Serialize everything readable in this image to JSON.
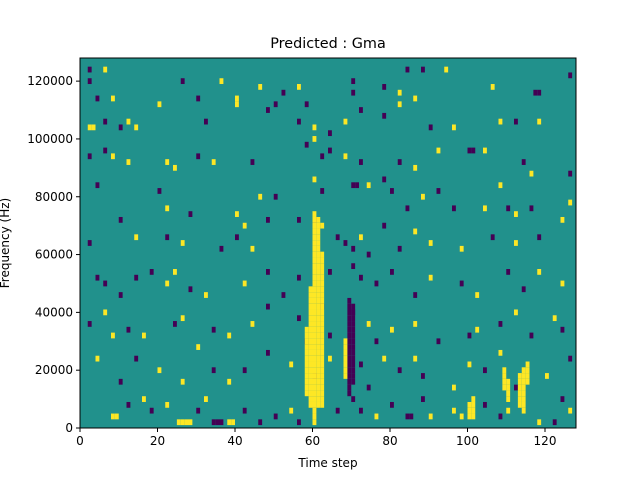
{
  "chart_data": {
    "type": "heatmap",
    "title": "Predicted : Gma",
    "xlabel": "Time step",
    "ylabel": "Frequency (Hz)",
    "xlim": [
      0,
      128
    ],
    "ylim": [
      0,
      128000
    ],
    "x_ticks": [
      0,
      20,
      40,
      60,
      80,
      100,
      120
    ],
    "y_ticks": [
      0,
      20000,
      40000,
      60000,
      80000,
      100000,
      120000
    ],
    "y_tick_labels": [
      "0",
      "20000",
      "40000",
      "60000",
      "80000",
      "100000",
      "120000"
    ],
    "colormap": "viridis",
    "values_range": [
      -1,
      1
    ],
    "colors": {
      "low": "#440154",
      "mid": "#21918c",
      "high": "#fde725"
    },
    "background_value": 0,
    "cells": [
      {
        "x": 2,
        "y": 124000,
        "v": -1
      },
      {
        "x": 2,
        "y": 120000,
        "v": -1
      },
      {
        "x": 6,
        "y": 124000,
        "v": 1
      },
      {
        "x": 26,
        "y": 120000,
        "v": -1
      },
      {
        "x": 36,
        "y": 120000,
        "v": 1
      },
      {
        "x": 46,
        "y": 118000,
        "v": 1
      },
      {
        "x": 52,
        "y": 116000,
        "v": -1
      },
      {
        "x": 56,
        "y": 118000,
        "v": 1
      },
      {
        "x": 84,
        "y": 124000,
        "v": -1
      },
      {
        "x": 88,
        "y": 124000,
        "v": -1
      },
      {
        "x": 94,
        "y": 124000,
        "v": 1
      },
      {
        "x": 117,
        "y": 116000,
        "v": -1
      },
      {
        "x": 118,
        "y": 116000,
        "v": -1
      },
      {
        "x": 126,
        "y": 122000,
        "v": -1
      },
      {
        "x": 4,
        "y": 114000,
        "v": -1
      },
      {
        "x": 8,
        "y": 114000,
        "v": 1
      },
      {
        "x": 20,
        "y": 112000,
        "v": 1
      },
      {
        "x": 30,
        "y": 114000,
        "v": -1
      },
      {
        "x": 40,
        "y": 114000,
        "v": 1
      },
      {
        "x": 40,
        "y": 112000,
        "v": 1
      },
      {
        "x": 50,
        "y": 112000,
        "v": -1
      },
      {
        "x": 58,
        "y": 112000,
        "v": -1
      },
      {
        "x": 70,
        "y": 120000,
        "v": -1
      },
      {
        "x": 70,
        "y": 116000,
        "v": -1
      },
      {
        "x": 78,
        "y": 118000,
        "v": -1
      },
      {
        "x": 82,
        "y": 116000,
        "v": 1
      },
      {
        "x": 82,
        "y": 112000,
        "v": 1
      },
      {
        "x": 86,
        "y": 114000,
        "v": 1
      },
      {
        "x": 106,
        "y": 118000,
        "v": 1
      },
      {
        "x": 2,
        "y": 104000,
        "v": 1
      },
      {
        "x": 3,
        "y": 104000,
        "v": 1
      },
      {
        "x": 6,
        "y": 106000,
        "v": -1
      },
      {
        "x": 10,
        "y": 104000,
        "v": -1
      },
      {
        "x": 12,
        "y": 106000,
        "v": 1
      },
      {
        "x": 14,
        "y": 104000,
        "v": 1
      },
      {
        "x": 32,
        "y": 106000,
        "v": -1
      },
      {
        "x": 48,
        "y": 110000,
        "v": -1
      },
      {
        "x": 56,
        "y": 106000,
        "v": -1
      },
      {
        "x": 60,
        "y": 104000,
        "v": 1
      },
      {
        "x": 60,
        "y": 100000,
        "v": 1
      },
      {
        "x": 64,
        "y": 102000,
        "v": -1
      },
      {
        "x": 68,
        "y": 106000,
        "v": 1
      },
      {
        "x": 72,
        "y": 110000,
        "v": -1
      },
      {
        "x": 78,
        "y": 108000,
        "v": -1
      },
      {
        "x": 90,
        "y": 104000,
        "v": -1
      },
      {
        "x": 96,
        "y": 104000,
        "v": 1
      },
      {
        "x": 108,
        "y": 106000,
        "v": 1
      },
      {
        "x": 112,
        "y": 106000,
        "v": -1
      },
      {
        "x": 118,
        "y": 106000,
        "v": 1
      },
      {
        "x": 2,
        "y": 94000,
        "v": -1
      },
      {
        "x": 6,
        "y": 96000,
        "v": -1
      },
      {
        "x": 8,
        "y": 94000,
        "v": 1
      },
      {
        "x": 12,
        "y": 92000,
        "v": 1
      },
      {
        "x": 22,
        "y": 92000,
        "v": 1
      },
      {
        "x": 24,
        "y": 90000,
        "v": 1
      },
      {
        "x": 30,
        "y": 94000,
        "v": -1
      },
      {
        "x": 34,
        "y": 92000,
        "v": 1
      },
      {
        "x": 44,
        "y": 92000,
        "v": -1
      },
      {
        "x": 58,
        "y": 98000,
        "v": -1
      },
      {
        "x": 62,
        "y": 94000,
        "v": -1
      },
      {
        "x": 64,
        "y": 96000,
        "v": -1
      },
      {
        "x": 68,
        "y": 94000,
        "v": 1
      },
      {
        "x": 72,
        "y": 92000,
        "v": -1
      },
      {
        "x": 82,
        "y": 92000,
        "v": -1
      },
      {
        "x": 86,
        "y": 90000,
        "v": 1
      },
      {
        "x": 92,
        "y": 96000,
        "v": 1
      },
      {
        "x": 100,
        "y": 96000,
        "v": -1
      },
      {
        "x": 101,
        "y": 96000,
        "v": -1
      },
      {
        "x": 104,
        "y": 96000,
        "v": 1
      },
      {
        "x": 114,
        "y": 92000,
        "v": -1
      },
      {
        "x": 116,
        "y": 88000,
        "v": 1
      },
      {
        "x": 126,
        "y": 88000,
        "v": -1
      },
      {
        "x": 4,
        "y": 84000,
        "v": -1
      },
      {
        "x": 20,
        "y": 82000,
        "v": -1
      },
      {
        "x": 22,
        "y": 76000,
        "v": 1
      },
      {
        "x": 28,
        "y": 74000,
        "v": -1
      },
      {
        "x": 40,
        "y": 74000,
        "v": 1
      },
      {
        "x": 46,
        "y": 80000,
        "v": 1
      },
      {
        "x": 50,
        "y": 80000,
        "v": -1
      },
      {
        "x": 60,
        "y": 86000,
        "v": 1
      },
      {
        "x": 62,
        "y": 82000,
        "v": -1
      },
      {
        "x": 70,
        "y": 84000,
        "v": -1
      },
      {
        "x": 71,
        "y": 84000,
        "v": -1
      },
      {
        "x": 74,
        "y": 84000,
        "v": 1
      },
      {
        "x": 78,
        "y": 86000,
        "v": -1
      },
      {
        "x": 80,
        "y": 82000,
        "v": -1
      },
      {
        "x": 84,
        "y": 76000,
        "v": -1
      },
      {
        "x": 88,
        "y": 80000,
        "v": 1
      },
      {
        "x": 92,
        "y": 82000,
        "v": -1
      },
      {
        "x": 96,
        "y": 76000,
        "v": -1
      },
      {
        "x": 104,
        "y": 76000,
        "v": 1
      },
      {
        "x": 108,
        "y": 84000,
        "v": 1
      },
      {
        "x": 110,
        "y": 76000,
        "v": -1
      },
      {
        "x": 112,
        "y": 74000,
        "v": 1
      },
      {
        "x": 116,
        "y": 76000,
        "v": -1
      },
      {
        "x": 124,
        "y": 72000,
        "v": 1
      },
      {
        "x": 126,
        "y": 78000,
        "v": 1
      },
      {
        "x": 2,
        "y": 64000,
        "v": -1
      },
      {
        "x": 10,
        "y": 72000,
        "v": -1
      },
      {
        "x": 14,
        "y": 66000,
        "v": 1
      },
      {
        "x": 22,
        "y": 66000,
        "v": -1
      },
      {
        "x": 26,
        "y": 64000,
        "v": 1
      },
      {
        "x": 36,
        "y": 62000,
        "v": -1
      },
      {
        "x": 40,
        "y": 66000,
        "v": -1
      },
      {
        "x": 42,
        "y": 70000,
        "v": 1
      },
      {
        "x": 44,
        "y": 62000,
        "v": 1
      },
      {
        "x": 48,
        "y": 72000,
        "v": -1
      },
      {
        "x": 56,
        "y": 72000,
        "v": -1
      },
      {
        "x": 60,
        "y": 72000,
        "v": -1
      },
      {
        "x": 62,
        "y": 70000,
        "v": 1
      },
      {
        "x": 66,
        "y": 66000,
        "v": -1
      },
      {
        "x": 68,
        "y": 64000,
        "v": -1
      },
      {
        "x": 70,
        "y": 62000,
        "v": -1
      },
      {
        "x": 72,
        "y": 66000,
        "v": 1
      },
      {
        "x": 74,
        "y": 60000,
        "v": -1
      },
      {
        "x": 78,
        "y": 70000,
        "v": -1
      },
      {
        "x": 82,
        "y": 62000,
        "v": -1
      },
      {
        "x": 86,
        "y": 68000,
        "v": 1
      },
      {
        "x": 90,
        "y": 64000,
        "v": 1
      },
      {
        "x": 98,
        "y": 62000,
        "v": 1
      },
      {
        "x": 106,
        "y": 66000,
        "v": -1
      },
      {
        "x": 112,
        "y": 64000,
        "v": 1
      },
      {
        "x": 118,
        "y": 66000,
        "v": -1
      },
      {
        "x": 4,
        "y": 52000,
        "v": -1
      },
      {
        "x": 6,
        "y": 50000,
        "v": -1
      },
      {
        "x": 10,
        "y": 46000,
        "v": -1
      },
      {
        "x": 14,
        "y": 52000,
        "v": -1
      },
      {
        "x": 18,
        "y": 54000,
        "v": -1
      },
      {
        "x": 22,
        "y": 50000,
        "v": 1
      },
      {
        "x": 24,
        "y": 54000,
        "v": 1
      },
      {
        "x": 28,
        "y": 48000,
        "v": -1
      },
      {
        "x": 32,
        "y": 46000,
        "v": 1
      },
      {
        "x": 42,
        "y": 50000,
        "v": 1
      },
      {
        "x": 48,
        "y": 54000,
        "v": -1
      },
      {
        "x": 52,
        "y": 46000,
        "v": -1
      },
      {
        "x": 56,
        "y": 52000,
        "v": -1
      },
      {
        "x": 64,
        "y": 54000,
        "v": -1
      },
      {
        "x": 70,
        "y": 56000,
        "v": -1
      },
      {
        "x": 72,
        "y": 52000,
        "v": -1
      },
      {
        "x": 76,
        "y": 50000,
        "v": -1
      },
      {
        "x": 80,
        "y": 54000,
        "v": -1
      },
      {
        "x": 86,
        "y": 46000,
        "v": -1
      },
      {
        "x": 90,
        "y": 52000,
        "v": 1
      },
      {
        "x": 98,
        "y": 50000,
        "v": -1
      },
      {
        "x": 102,
        "y": 46000,
        "v": 1
      },
      {
        "x": 110,
        "y": 54000,
        "v": -1
      },
      {
        "x": 114,
        "y": 48000,
        "v": -1
      },
      {
        "x": 118,
        "y": 54000,
        "v": 1
      },
      {
        "x": 124,
        "y": 50000,
        "v": 1
      },
      {
        "x": 2,
        "y": 36000,
        "v": -1
      },
      {
        "x": 6,
        "y": 40000,
        "v": 1
      },
      {
        "x": 8,
        "y": 32000,
        "v": 1
      },
      {
        "x": 12,
        "y": 34000,
        "v": -1
      },
      {
        "x": 16,
        "y": 32000,
        "v": 1
      },
      {
        "x": 24,
        "y": 36000,
        "v": -1
      },
      {
        "x": 26,
        "y": 38000,
        "v": 1
      },
      {
        "x": 30,
        "y": 28000,
        "v": 1
      },
      {
        "x": 34,
        "y": 34000,
        "v": -1
      },
      {
        "x": 38,
        "y": 32000,
        "v": 1
      },
      {
        "x": 44,
        "y": 36000,
        "v": 1
      },
      {
        "x": 48,
        "y": 42000,
        "v": -1
      },
      {
        "x": 56,
        "y": 38000,
        "v": -1
      },
      {
        "x": 58,
        "y": 30000,
        "v": -1
      },
      {
        "x": 62,
        "y": 42000,
        "v": -1
      },
      {
        "x": 64,
        "y": 32000,
        "v": -1
      },
      {
        "x": 70,
        "y": 40000,
        "v": -1
      },
      {
        "x": 74,
        "y": 36000,
        "v": 1
      },
      {
        "x": 76,
        "y": 30000,
        "v": -1
      },
      {
        "x": 80,
        "y": 34000,
        "v": 1
      },
      {
        "x": 86,
        "y": 36000,
        "v": 1
      },
      {
        "x": 92,
        "y": 30000,
        "v": -1
      },
      {
        "x": 100,
        "y": 32000,
        "v": -1
      },
      {
        "x": 102,
        "y": 34000,
        "v": 1
      },
      {
        "x": 108,
        "y": 36000,
        "v": -1
      },
      {
        "x": 112,
        "y": 40000,
        "v": 1
      },
      {
        "x": 116,
        "y": 32000,
        "v": -1
      },
      {
        "x": 122,
        "y": 38000,
        "v": 1
      },
      {
        "x": 124,
        "y": 34000,
        "v": -1
      },
      {
        "x": 4,
        "y": 24000,
        "v": 1
      },
      {
        "x": 10,
        "y": 16000,
        "v": -1
      },
      {
        "x": 14,
        "y": 24000,
        "v": -1
      },
      {
        "x": 20,
        "y": 20000,
        "v": 1
      },
      {
        "x": 26,
        "y": 16000,
        "v": 1
      },
      {
        "x": 34,
        "y": 20000,
        "v": -1
      },
      {
        "x": 38,
        "y": 16000,
        "v": 1
      },
      {
        "x": 42,
        "y": 20000,
        "v": -1
      },
      {
        "x": 48,
        "y": 26000,
        "v": -1
      },
      {
        "x": 54,
        "y": 22000,
        "v": 1
      },
      {
        "x": 60,
        "y": 18000,
        "v": -1
      },
      {
        "x": 64,
        "y": 24000,
        "v": 1
      },
      {
        "x": 72,
        "y": 22000,
        "v": -1
      },
      {
        "x": 74,
        "y": 14000,
        "v": -1
      },
      {
        "x": 78,
        "y": 24000,
        "v": 1
      },
      {
        "x": 82,
        "y": 20000,
        "v": -1
      },
      {
        "x": 86,
        "y": 24000,
        "v": 1
      },
      {
        "x": 88,
        "y": 18000,
        "v": -1
      },
      {
        "x": 96,
        "y": 14000,
        "v": 1
      },
      {
        "x": 100,
        "y": 22000,
        "v": 1
      },
      {
        "x": 104,
        "y": 20000,
        "v": -1
      },
      {
        "x": 108,
        "y": 26000,
        "v": 1
      },
      {
        "x": 112,
        "y": 14000,
        "v": -1
      },
      {
        "x": 120,
        "y": 18000,
        "v": 1
      },
      {
        "x": 126,
        "y": 24000,
        "v": -1
      },
      {
        "x": 8,
        "y": 4000,
        "v": 1
      },
      {
        "x": 9,
        "y": 4000,
        "v": 1
      },
      {
        "x": 12,
        "y": 8000,
        "v": -1
      },
      {
        "x": 16,
        "y": 10000,
        "v": 1
      },
      {
        "x": 18,
        "y": 6000,
        "v": -1
      },
      {
        "x": 22,
        "y": 8000,
        "v": 1
      },
      {
        "x": 25,
        "y": 2000,
        "v": 1
      },
      {
        "x": 26,
        "y": 2000,
        "v": 1
      },
      {
        "x": 27,
        "y": 2000,
        "v": 1
      },
      {
        "x": 28,
        "y": 2000,
        "v": 1
      },
      {
        "x": 30,
        "y": 6000,
        "v": -1
      },
      {
        "x": 32,
        "y": 10000,
        "v": 1
      },
      {
        "x": 34,
        "y": 2000,
        "v": -1
      },
      {
        "x": 35,
        "y": 2000,
        "v": -1
      },
      {
        "x": 36,
        "y": 2000,
        "v": -1
      },
      {
        "x": 38,
        "y": 2000,
        "v": 1
      },
      {
        "x": 39,
        "y": 2000,
        "v": 1
      },
      {
        "x": 42,
        "y": 6000,
        "v": -1
      },
      {
        "x": 46,
        "y": 2000,
        "v": -1
      },
      {
        "x": 50,
        "y": 4000,
        "v": -1
      },
      {
        "x": 54,
        "y": 6000,
        "v": 1
      },
      {
        "x": 56,
        "y": 2000,
        "v": -1
      },
      {
        "x": 62,
        "y": 8000,
        "v": 1
      },
      {
        "x": 66,
        "y": 6000,
        "v": -1
      },
      {
        "x": 70,
        "y": 10000,
        "v": -1
      },
      {
        "x": 72,
        "y": 6000,
        "v": -1
      },
      {
        "x": 76,
        "y": 4000,
        "v": 1
      },
      {
        "x": 80,
        "y": 8000,
        "v": -1
      },
      {
        "x": 84,
        "y": 4000,
        "v": -1
      },
      {
        "x": 85,
        "y": 4000,
        "v": -1
      },
      {
        "x": 88,
        "y": 10000,
        "v": -1
      },
      {
        "x": 90,
        "y": 4000,
        "v": 1
      },
      {
        "x": 96,
        "y": 6000,
        "v": 1
      },
      {
        "x": 98,
        "y": 4000,
        "v": 1
      },
      {
        "x": 104,
        "y": 8000,
        "v": -1
      },
      {
        "x": 108,
        "y": 4000,
        "v": -1
      },
      {
        "x": 110,
        "y": 6000,
        "v": 1
      },
      {
        "x": 118,
        "y": 2000,
        "v": 1
      },
      {
        "x": 122,
        "y": 2000,
        "v": -1
      },
      {
        "x": 124,
        "y": 10000,
        "v": -1
      },
      {
        "x": 126,
        "y": 6000,
        "v": 1
      }
    ],
    "column_bands": [
      {
        "x": 60,
        "y_from": 2000,
        "y_to": 74000,
        "v": 1
      },
      {
        "x": 61,
        "y_from": 8000,
        "y_to": 72000,
        "v": 1
      },
      {
        "x": 62,
        "y_from": 10000,
        "y_to": 60000,
        "v": 1
      },
      {
        "x": 58,
        "y_from": 12000,
        "y_to": 34000,
        "v": 1
      },
      {
        "x": 59,
        "y_from": 8000,
        "y_to": 48000,
        "v": 1
      },
      {
        "x": 69,
        "y_from": 12000,
        "y_to": 44000,
        "v": -1
      },
      {
        "x": 70,
        "y_from": 16000,
        "y_to": 42000,
        "v": -1
      },
      {
        "x": 68,
        "y_from": 18000,
        "y_to": 30000,
        "v": 1
      },
      {
        "x": 110,
        "y_from": 10000,
        "y_to": 16000,
        "v": 1
      },
      {
        "x": 109,
        "y_from": 14000,
        "y_to": 20000,
        "v": 1
      },
      {
        "x": 113,
        "y_from": 8000,
        "y_to": 18000,
        "v": 1
      },
      {
        "x": 114,
        "y_from": 6000,
        "y_to": 20000,
        "v": 1
      },
      {
        "x": 115,
        "y_from": 16000,
        "y_to": 22000,
        "v": 1
      },
      {
        "x": 100,
        "y_from": 4000,
        "y_to": 8000,
        "v": 1
      },
      {
        "x": 101,
        "y_from": 4000,
        "y_to": 10000,
        "v": 1
      }
    ]
  }
}
